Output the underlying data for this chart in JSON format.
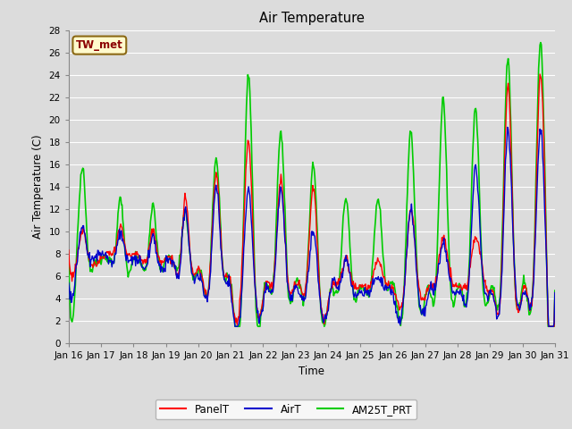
{
  "title": "Air Temperature",
  "xlabel": "Time",
  "ylabel": "Air Temperature (C)",
  "ylim": [
    0,
    28
  ],
  "yticks": [
    0,
    2,
    4,
    6,
    8,
    10,
    12,
    14,
    16,
    18,
    20,
    22,
    24,
    26,
    28
  ],
  "xtick_labels": [
    "Jan 16",
    "Jan 17",
    "Jan 18",
    "Jan 19",
    "Jan 20",
    "Jan 21",
    "Jan 22",
    "Jan 23",
    "Jan 24",
    "Jan 25",
    "Jan 26",
    "Jan 27",
    "Jan 28",
    "Jan 29",
    "Jan 30",
    "Jan 31"
  ],
  "station_label": "TW_met",
  "station_label_color": "#8B0000",
  "station_box_facecolor": "#FFFACD",
  "station_box_edgecolor": "#8B6914",
  "bg_color": "#DCDCDC",
  "plot_bg_color": "#DCDCDC",
  "grid_color": "#FFFFFF",
  "line_colors": {
    "PanelT": "#FF0000",
    "AirT": "#0000CC",
    "AM25T_PRT": "#00CC00"
  },
  "line_widths": {
    "PanelT": 1.0,
    "AirT": 1.0,
    "AM25T_PRT": 1.2
  },
  "legend_labels": [
    "PanelT",
    "AirT",
    "AM25T_PRT"
  ],
  "num_days": 15,
  "figsize": [
    6.4,
    4.8
  ],
  "dpi": 100,
  "panel_ctrl_t": [
    0,
    0.25,
    0.45,
    0.6,
    0.75,
    1,
    1.25,
    1.45,
    1.6,
    1.75,
    2,
    2.25,
    2.45,
    2.6,
    2.75,
    3,
    3.25,
    3.45,
    3.6,
    3.75,
    4,
    4.1,
    4.35,
    4.55,
    4.75,
    5,
    5.05,
    5.35,
    5.55,
    5.75,
    6,
    6.1,
    6.35,
    6.55,
    6.75,
    7,
    7.1,
    7.35,
    7.55,
    7.75,
    8,
    8.1,
    8.35,
    8.55,
    8.75,
    9,
    9.1,
    9.35,
    9.55,
    9.75,
    10,
    10.1,
    10.35,
    10.55,
    10.75,
    11,
    11.1,
    11.35,
    11.55,
    11.75,
    12,
    12.1,
    12.35,
    12.55,
    12.75,
    13,
    13.1,
    13.35,
    13.55,
    13.75,
    14,
    14.1,
    14.35,
    14.55,
    14.75,
    15
  ],
  "panel_ctrl_v": [
    8,
    7.5,
    10,
    8,
    7,
    7.5,
    8,
    8.5,
    10.5,
    8.5,
    8,
    7.5,
    8,
    10,
    8,
    7.5,
    7,
    7.5,
    13,
    8,
    6.5,
    6,
    6,
    15,
    7,
    5.5,
    4,
    7,
    18,
    5.5,
    4,
    5.5,
    6.5,
    14.5,
    6,
    5.5,
    5.5,
    6,
    14,
    4.5,
    3.5,
    5,
    5.5,
    7.5,
    5.5,
    5,
    5,
    5.5,
    7.5,
    5.5,
    5,
    4,
    5,
    12,
    6.5,
    4,
    5,
    6,
    9.5,
    6.5,
    5,
    5,
    6,
    9.5,
    7,
    4.5,
    4.5,
    6,
    23,
    7,
    4.5,
    5,
    6.5,
    24,
    7,
    4.5
  ],
  "air_ctrl_t": [
    0,
    0.25,
    0.45,
    0.6,
    0.75,
    1,
    1.25,
    1.45,
    1.6,
    1.75,
    2,
    2.25,
    2.45,
    2.6,
    2.75,
    3,
    3.25,
    3.45,
    3.6,
    3.75,
    4,
    4.1,
    4.35,
    4.55,
    4.75,
    5,
    5.05,
    5.35,
    5.55,
    5.75,
    6,
    6.1,
    6.35,
    6.55,
    6.75,
    7,
    7.1,
    7.35,
    7.55,
    7.75,
    8,
    8.1,
    8.35,
    8.55,
    8.75,
    9,
    9.1,
    9.35,
    9.55,
    9.75,
    10,
    10.1,
    10.35,
    10.55,
    10.75,
    11,
    11.1,
    11.35,
    11.55,
    11.75,
    12,
    12.1,
    12.35,
    12.55,
    12.75,
    13,
    13.1,
    13.35,
    13.55,
    13.75,
    14,
    14.1,
    14.35,
    14.55,
    14.75,
    15
  ],
  "air_ctrl_v": [
    5.5,
    7,
    10.5,
    8,
    7.5,
    8,
    7.5,
    8,
    10,
    8,
    7.5,
    7,
    7.5,
    9.5,
    7.5,
    7,
    7,
    7,
    12,
    7.5,
    6,
    5.5,
    5.5,
    14,
    6.5,
    5,
    3.5,
    5,
    14,
    5,
    3.5,
    5,
    6,
    14,
    5.5,
    5,
    4.5,
    5,
    10,
    4,
    3,
    5,
    5,
    7.5,
    5,
    4.5,
    4.5,
    5,
    6,
    5,
    4.5,
    3,
    4.5,
    12,
    6,
    3,
    4.5,
    5.5,
    9,
    6,
    4.5,
    4.5,
    5.5,
    16,
    7,
    4.5,
    4,
    5.5,
    19,
    7,
    4,
    4.5,
    6,
    19,
    6.5,
    4.5
  ],
  "am25_ctrl_t": [
    0,
    0.25,
    0.45,
    0.6,
    0.75,
    1,
    1.25,
    1.45,
    1.6,
    1.75,
    2,
    2.25,
    2.45,
    2.6,
    2.75,
    3,
    3.25,
    3.45,
    3.6,
    3.75,
    4,
    4.1,
    4.35,
    4.55,
    4.75,
    5,
    5.05,
    5.35,
    5.55,
    5.75,
    6,
    6.1,
    6.35,
    6.55,
    6.75,
    7,
    7.1,
    7.35,
    7.55,
    7.75,
    8,
    8.1,
    8.35,
    8.55,
    8.75,
    9,
    9.1,
    9.35,
    9.55,
    9.75,
    10,
    10.1,
    10.35,
    10.55,
    10.75,
    11,
    11.1,
    11.35,
    11.55,
    11.75,
    12,
    12.1,
    12.35,
    12.55,
    12.75,
    13,
    13.1,
    13.35,
    13.55,
    13.75,
    14,
    14.1,
    14.35,
    14.55,
    14.75,
    15
  ],
  "am25_ctrl_v": [
    7,
    8,
    15.5,
    8,
    7,
    7.5,
    7.5,
    8.5,
    13,
    8,
    7.5,
    7,
    8,
    12.5,
    8,
    7.5,
    7,
    8,
    12,
    7.5,
    6.5,
    6,
    6,
    16.5,
    7,
    5.5,
    4,
    6,
    24,
    5.5,
    4,
    5.5,
    7,
    19,
    6,
    5.5,
    5.5,
    6,
    16,
    4.5,
    3.5,
    5,
    5.5,
    13,
    5.5,
    5,
    5,
    6,
    13,
    6,
    5.5,
    4,
    5,
    19,
    6.5,
    4,
    5,
    6.5,
    22,
    7,
    5,
    5,
    6.5,
    21,
    7,
    4.5,
    5,
    7,
    25.5,
    7,
    5,
    5,
    7,
    27,
    7,
    5
  ]
}
